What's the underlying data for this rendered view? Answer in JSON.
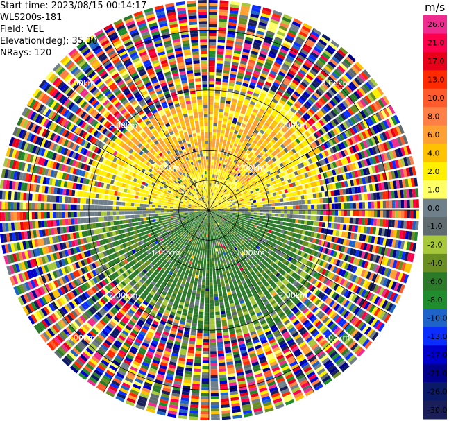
{
  "header": {
    "start_time": "Start time: 2023/08/15 00:14:17",
    "instrument": "WLS200s-181",
    "field": "Field: VEL",
    "elevation": "Elevation(deg): 35.30",
    "nrays": "NRays: 120"
  },
  "chart_data": {
    "type": "heatmap",
    "subtype": "polar-ppi",
    "field": "VEL",
    "units": "m/s",
    "nrays": 120,
    "elevation_deg": 35.3,
    "range_km": [
      0,
      3.5
    ],
    "ring_labels": [
      "1.00km",
      "2.00km",
      "3.00km"
    ],
    "ring_ranges_km": [
      1,
      2,
      3
    ],
    "colorbar": {
      "unit": "m/s",
      "tick_labels": [
        "26.0",
        "21.0",
        "17.0",
        "13.0",
        "10.0",
        "8.0",
        "6.0",
        "4.0",
        "2.0",
        "1.0",
        "0.0",
        "-1.0",
        "-2.0",
        "-4.0",
        "-6.0",
        "-8.0",
        "-10.0",
        "-13.0",
        "-17.0",
        "-21.0",
        "-26.0",
        "-30.0"
      ],
      "colors": [
        "#f02b8f",
        "#ff004d",
        "#e8001a",
        "#ff2a00",
        "#ff5a2c",
        "#ff8047",
        "#ffa033",
        "#ffc200",
        "#fff000",
        "#ffff66",
        "#70808a",
        "#5f6b6e",
        "#a7c83a",
        "#6b8e23",
        "#2a7a2a",
        "#1f8c2d",
        "#1e63c8",
        "#0a2eff",
        "#0000cd",
        "#00008b",
        "#0b1a66",
        "#1a1f5a"
      ]
    }
  }
}
